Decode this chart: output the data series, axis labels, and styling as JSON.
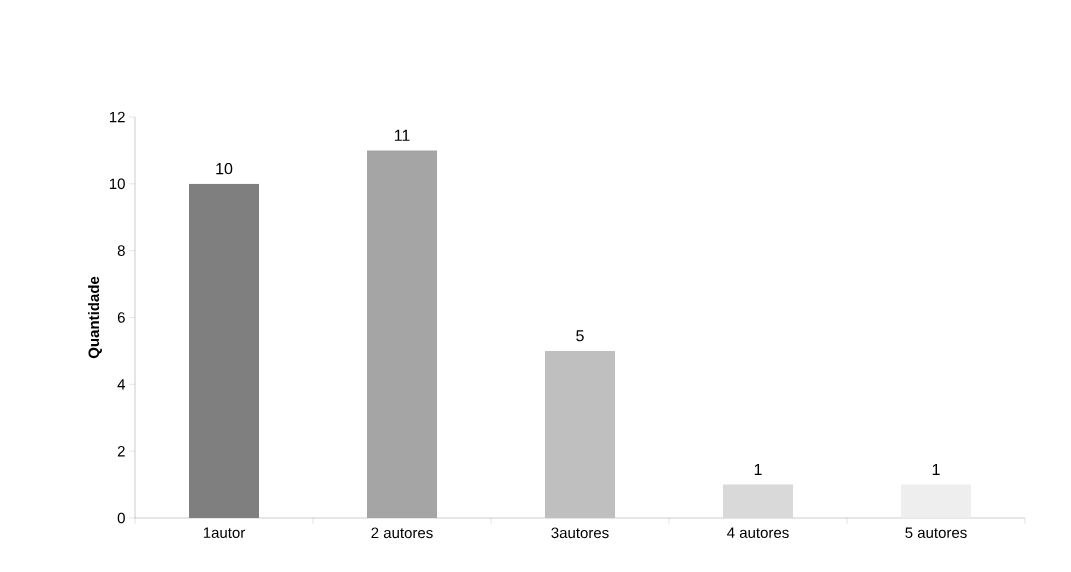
{
  "chart_data": {
    "type": "bar",
    "ylabel": "Quantidade",
    "categories": [
      "1autor",
      "2 autores",
      "3autores",
      "4 autores",
      "5 autores"
    ],
    "values": [
      10,
      11,
      5,
      1,
      1
    ],
    "colors": [
      "#7f7f7f",
      "#a5a5a5",
      "#bfbfbf",
      "#d9d9d9",
      "#eeeeee"
    ],
    "ylim": [
      0,
      12
    ],
    "yticks": [
      0,
      2,
      4,
      6,
      8,
      10,
      12
    ],
    "data_labels": true
  }
}
